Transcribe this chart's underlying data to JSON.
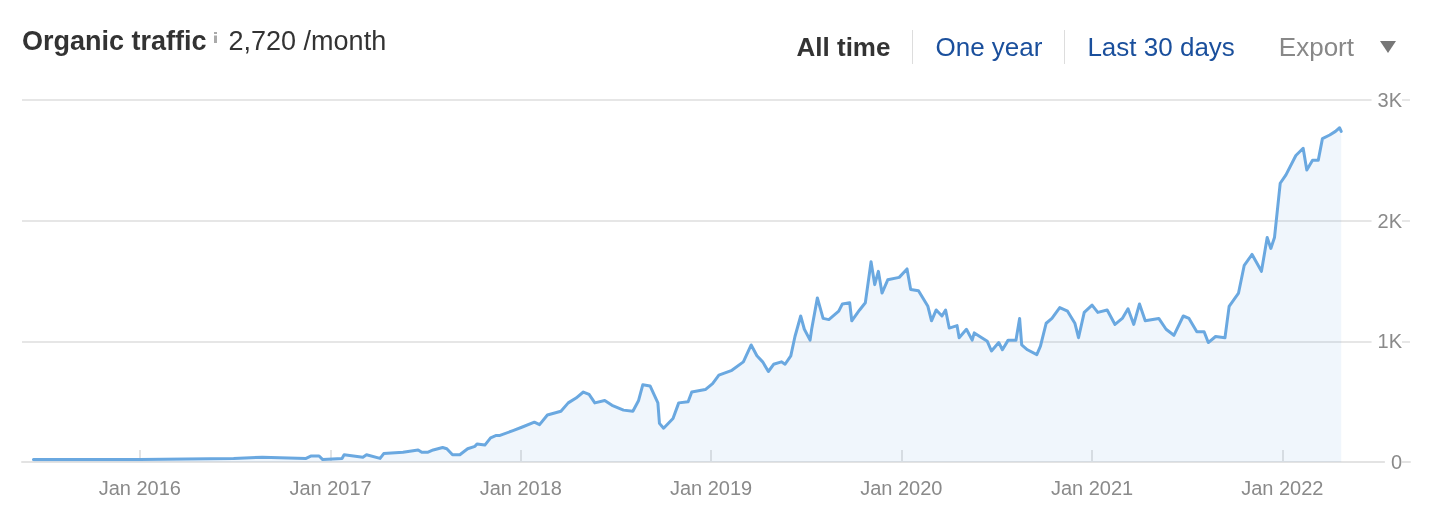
{
  "chart_data": {
    "type": "area",
    "title": "Organic traffic",
    "subtitle": "2,720 /month",
    "annotations": [
      "All time",
      "One year",
      "Last 30 days",
      "Export"
    ],
    "x": [
      "2015-06-11",
      "2016-01-01",
      "2016-06-29",
      "2016-08-23",
      "2016-11-15",
      "2016-11-25",
      "2016-12-10",
      "2016-12-17",
      "2017-01-23",
      "2017-01-27",
      "2017-03-04",
      "2017-03-11",
      "2017-04-06",
      "2017-04-13",
      "2017-05-20",
      "2017-06-18",
      "2017-06-25",
      "2017-07-06",
      "2017-07-17",
      "2017-08-04",
      "2017-08-12",
      "2017-08-23",
      "2017-09-06",
      "2017-09-21",
      "2017-10-05",
      "2017-10-09",
      "2017-10-24",
      "2017-11-04",
      "2017-11-15",
      "2017-11-22",
      "2017-12-17",
      "2018-01-04",
      "2018-01-27",
      "2018-02-06",
      "2018-02-21",
      "2018-03-19",
      "2018-04-02",
      "2018-04-17",
      "2018-05-01",
      "2018-05-12",
      "2018-05-23",
      "2018-06-11",
      "2018-06-25",
      "2018-07-17",
      "2018-08-04",
      "2018-08-15",
      "2018-08-23",
      "2018-09-06",
      "2018-09-21",
      "2018-09-24",
      "2018-10-02",
      "2018-10-20",
      "2018-10-31",
      "2018-11-18",
      "2018-11-25",
      "2018-12-21",
      "2019-01-04",
      "2019-01-16",
      "2019-02-10",
      "2019-03-04",
      "2019-03-19",
      "2019-03-30",
      "2019-04-10",
      "2019-04-21",
      "2019-05-01",
      "2019-05-16",
      "2019-05-23",
      "2019-06-03",
      "2019-06-11",
      "2019-06-22",
      "2019-06-29",
      "2019-07-10",
      "2019-07-13",
      "2019-07-24",
      "2019-08-04",
      "2019-08-15",
      "2019-09-03",
      "2019-09-10",
      "2019-09-24",
      "2019-09-28",
      "2019-10-13",
      "2019-10-24",
      "2019-11-04",
      "2019-11-11",
      "2019-11-18",
      "2019-11-25",
      "2019-12-06",
      "2019-12-28",
      "2020-01-12",
      "2020-01-19",
      "2020-02-03",
      "2020-02-21",
      "2020-02-28",
      "2020-03-08",
      "2020-03-19",
      "2020-03-26",
      "2020-04-02",
      "2020-04-17",
      "2020-04-21",
      "2020-05-05",
      "2020-05-16",
      "2020-05-20",
      "2020-06-14",
      "2020-06-22",
      "2020-07-06",
      "2020-07-13",
      "2020-07-24",
      "2020-08-08",
      "2020-08-15",
      "2020-08-19",
      "2020-08-30",
      "2020-09-17",
      "2020-09-24",
      "2020-10-05",
      "2020-10-16",
      "2020-10-31",
      "2020-11-15",
      "2020-11-29",
      "2020-12-06",
      "2020-12-17",
      "2021-01-01",
      "2021-01-12",
      "2021-01-30",
      "2021-02-14",
      "2021-02-28",
      "2021-03-11",
      "2021-03-22",
      "2021-04-02",
      "2021-04-13",
      "2021-05-09",
      "2021-05-23",
      "2021-06-07",
      "2021-06-25",
      "2021-07-06",
      "2021-07-21",
      "2021-08-04",
      "2021-08-12",
      "2021-08-26",
      "2021-09-13",
      "2021-09-21",
      "2021-10-09",
      "2021-10-20",
      "2021-11-04",
      "2021-11-22",
      "2021-12-03",
      "2021-12-10",
      "2021-12-17",
      "2021-12-28",
      "2022-01-08",
      "2022-01-27",
      "2022-02-10",
      "2022-02-17",
      "2022-02-28",
      "2022-03-11",
      "2022-03-19",
      "2022-04-02",
      "2022-04-13",
      "2022-04-21",
      "2022-04-24"
    ],
    "series": [
      {
        "color": "#6aa8e0",
        "values": [
          20,
          20,
          30,
          40,
          30,
          50,
          50,
          20,
          30,
          60,
          40,
          60,
          30,
          70,
          80,
          100,
          80,
          80,
          100,
          120,
          110,
          60,
          60,
          110,
          130,
          150,
          140,
          200,
          220,
          220,
          260,
          290,
          330,
          310,
          390,
          420,
          490,
          530,
          580,
          560,
          490,
          510,
          470,
          430,
          420,
          510,
          640,
          630,
          490,
          320,
          280,
          360,
          490,
          500,
          580,
          600,
          650,
          720,
          760,
          830,
          970,
          880,
          830,
          750,
          810,
          830,
          810,
          880,
          1040,
          1210,
          1100,
          1010,
          1100,
          1360,
          1190,
          1180,
          1250,
          1310,
          1320,
          1170,
          1260,
          1320,
          1660,
          1470,
          1580,
          1400,
          1510,
          1530,
          1600,
          1430,
          1420,
          1290,
          1170,
          1260,
          1210,
          1260,
          1110,
          1130,
          1030,
          1100,
          1010,
          1070,
          1000,
          920,
          990,
          930,
          1010,
          1010,
          1190,
          970,
          930,
          890,
          960,
          1150,
          1190,
          1280,
          1250,
          1150,
          1030,
          1240,
          1300,
          1240,
          1260,
          1140,
          1190,
          1270,
          1140,
          1310,
          1170,
          1190,
          1100,
          1050,
          1210,
          1190,
          1080,
          1080,
          990,
          1040,
          1030,
          1290,
          1400,
          1630,
          1720,
          1580,
          1860,
          1770,
          1860,
          2310,
          2380,
          2540,
          2600,
          2420,
          2500,
          2500,
          2680,
          2710,
          2740,
          2770,
          2740
        ]
      }
    ],
    "xlim": [
      "2015-05-20",
      "2022-09-03"
    ],
    "xticks": [
      {
        "value": "2016-01",
        "label": "Jan 2016"
      },
      {
        "value": "2017-01",
        "label": "Jan 2017"
      },
      {
        "value": "2018-01",
        "label": "Jan 2018"
      },
      {
        "value": "2019-01",
        "label": "Jan 2019"
      },
      {
        "value": "2020-01",
        "label": "Jan 2020"
      },
      {
        "value": "2021-01",
        "label": "Jan 2021"
      },
      {
        "value": "2022-01",
        "label": "Jan 2022"
      }
    ],
    "ylim": [
      0,
      3000
    ],
    "yticks": [
      {
        "value": 0,
        "label": "0"
      },
      {
        "value": 1000,
        "label": "1K"
      },
      {
        "value": 2000,
        "label": "2K"
      },
      {
        "value": 3000,
        "label": "3K"
      }
    ],
    "grid": "y",
    "marker": "none",
    "line_style": "solid"
  }
}
